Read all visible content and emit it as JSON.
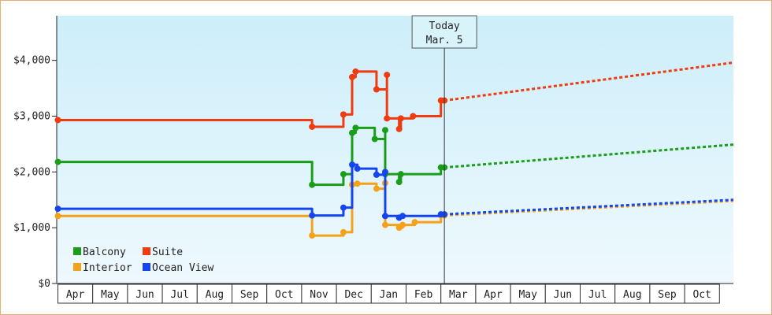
{
  "chart_data": {
    "type": "line",
    "title": "",
    "xlabel": "",
    "ylabel": "",
    "ylim": [
      0,
      4800
    ],
    "y_ticks": [
      "$0",
      "$1,000",
      "$2,000",
      "$3,000",
      "$4,000"
    ],
    "y_tick_values": [
      0,
      1000,
      2000,
      3000,
      4000
    ],
    "month_labels": [
      "Apr",
      "May",
      "Jun",
      "Jul",
      "Aug",
      "Sep",
      "Oct",
      "Nov",
      "Dec",
      "Jan",
      "Feb",
      "Mar",
      "Apr",
      "May",
      "Jun",
      "Jul",
      "Aug",
      "Sep",
      "Oct"
    ],
    "today_marker": {
      "line1": "Today",
      "line2": "Mar. 5",
      "x": 11.1
    },
    "background_gradient": [
      "#cdeefa",
      "#eef9fd"
    ],
    "legend_placement": "bottom-left",
    "series": [
      {
        "name": "Balcony",
        "color": "#1a9e1a",
        "points": [
          [
            0,
            2180
          ],
          [
            7.3,
            2180
          ],
          [
            7.3,
            1770
          ],
          [
            8.2,
            1770
          ],
          [
            8.2,
            1960
          ],
          [
            8.45,
            1960
          ],
          [
            8.45,
            2700
          ],
          [
            8.55,
            2700
          ],
          [
            8.55,
            2790
          ],
          [
            9.1,
            2790
          ],
          [
            9.1,
            2590
          ],
          [
            9.4,
            2590
          ],
          [
            9.4,
            2750
          ],
          [
            9.4,
            1960
          ],
          [
            9.8,
            1960
          ],
          [
            9.8,
            1820
          ],
          [
            9.85,
            1820
          ],
          [
            9.85,
            1960
          ],
          [
            11.0,
            1960
          ],
          [
            11.0,
            2080
          ],
          [
            11.1,
            2080
          ]
        ],
        "projection": [
          [
            11.1,
            2080
          ],
          [
            19.4,
            2490
          ]
        ]
      },
      {
        "name": "Suite",
        "color": "#f03a10",
        "points": [
          [
            0,
            2930
          ],
          [
            7.3,
            2930
          ],
          [
            7.3,
            2810
          ],
          [
            8.2,
            2810
          ],
          [
            8.2,
            3030
          ],
          [
            8.45,
            3030
          ],
          [
            8.45,
            3700
          ],
          [
            8.55,
            3700
          ],
          [
            8.55,
            3800
          ],
          [
            9.15,
            3800
          ],
          [
            9.15,
            3480
          ],
          [
            9.45,
            3480
          ],
          [
            9.45,
            3740
          ],
          [
            9.45,
            2960
          ],
          [
            9.8,
            2960
          ],
          [
            9.8,
            2770
          ],
          [
            9.85,
            2770
          ],
          [
            9.85,
            2960
          ],
          [
            10.2,
            2960
          ],
          [
            10.2,
            3000
          ],
          [
            11.0,
            3000
          ],
          [
            11.0,
            3280
          ],
          [
            11.1,
            3280
          ]
        ],
        "projection": [
          [
            11.1,
            3280
          ],
          [
            19.4,
            3960
          ]
        ]
      },
      {
        "name": "Interior",
        "color": "#f5a21a",
        "points": [
          [
            0,
            1210
          ],
          [
            7.3,
            1210
          ],
          [
            7.3,
            860
          ],
          [
            8.2,
            860
          ],
          [
            8.2,
            920
          ],
          [
            8.45,
            920
          ],
          [
            8.45,
            1770
          ],
          [
            8.6,
            1770
          ],
          [
            8.6,
            1790
          ],
          [
            9.15,
            1790
          ],
          [
            9.15,
            1700
          ],
          [
            9.4,
            1700
          ],
          [
            9.4,
            1800
          ],
          [
            9.4,
            1050
          ],
          [
            9.8,
            1050
          ],
          [
            9.8,
            1000
          ],
          [
            9.9,
            1000
          ],
          [
            9.9,
            1050
          ],
          [
            10.25,
            1050
          ],
          [
            10.25,
            1100
          ],
          [
            11.0,
            1100
          ],
          [
            11.0,
            1220
          ],
          [
            11.1,
            1220
          ]
        ],
        "projection": [
          [
            11.1,
            1220
          ],
          [
            19.4,
            1480
          ]
        ]
      },
      {
        "name": "Ocean View",
        "color": "#1545f0",
        "points": [
          [
            0,
            1340
          ],
          [
            7.3,
            1340
          ],
          [
            7.3,
            1220
          ],
          [
            8.2,
            1220
          ],
          [
            8.2,
            1360
          ],
          [
            8.45,
            1360
          ],
          [
            8.45,
            2130
          ],
          [
            8.6,
            2130
          ],
          [
            8.6,
            2060
          ],
          [
            9.15,
            2060
          ],
          [
            9.15,
            1950
          ],
          [
            9.4,
            1950
          ],
          [
            9.4,
            2000
          ],
          [
            9.4,
            1210
          ],
          [
            9.8,
            1210
          ],
          [
            9.8,
            1180
          ],
          [
            9.9,
            1180
          ],
          [
            9.9,
            1210
          ],
          [
            11.0,
            1210
          ],
          [
            11.0,
            1240
          ],
          [
            11.1,
            1240
          ]
        ],
        "projection": [
          [
            11.1,
            1240
          ],
          [
            19.4,
            1500
          ]
        ]
      }
    ]
  }
}
